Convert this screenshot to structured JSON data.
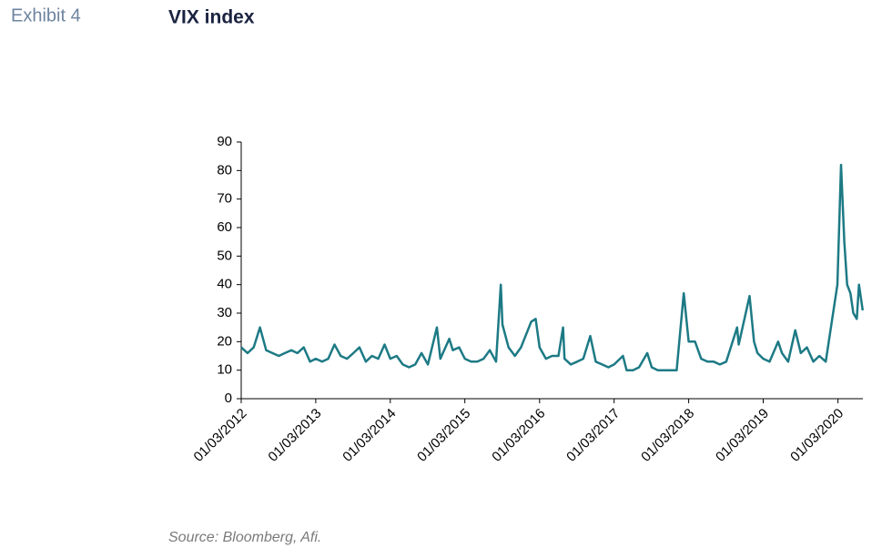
{
  "chart_data": {
    "type": "line",
    "label": "Exhibit 4",
    "title": "VIX index",
    "source": "Source: Bloomberg, Afi.",
    "ylim": [
      0,
      90
    ],
    "yticks": [
      0,
      10,
      20,
      30,
      40,
      50,
      60,
      70,
      80,
      90
    ],
    "xlim": [
      "01/03/2012",
      "01/07/2020"
    ],
    "xticks": [
      "01/03/2012",
      "01/03/2013",
      "01/03/2014",
      "01/03/2015",
      "01/03/2016",
      "01/03/2017",
      "01/03/2018",
      "01/03/2019",
      "01/03/2020"
    ],
    "grid": false,
    "series": [
      {
        "name": "VIX",
        "color": "#1d7a85",
        "x": [
          "01/03/2012",
          "01/04/2012",
          "01/05/2012",
          "01/06/2012",
          "01/07/2012",
          "01/08/2012",
          "01/09/2012",
          "01/10/2012",
          "01/11/2012",
          "01/12/2012",
          "01/01/2013",
          "01/02/2013",
          "01/03/2013",
          "01/04/2013",
          "01/05/2013",
          "01/06/2013",
          "01/07/2013",
          "01/08/2013",
          "01/09/2013",
          "01/10/2013",
          "01/11/2013",
          "01/12/2013",
          "01/01/2014",
          "01/02/2014",
          "01/03/2014",
          "01/04/2014",
          "01/05/2014",
          "01/06/2014",
          "01/07/2014",
          "01/08/2014",
          "01/09/2014",
          "15/10/2014",
          "01/11/2014",
          "15/12/2014",
          "01/01/2015",
          "01/02/2015",
          "01/03/2015",
          "01/04/2015",
          "01/05/2015",
          "01/06/2015",
          "01/07/2015",
          "01/08/2015",
          "24/08/2015",
          "01/09/2015",
          "01/10/2015",
          "01/11/2015",
          "01/12/2015",
          "20/01/2016",
          "11/02/2016",
          "01/03/2016",
          "01/04/2016",
          "01/05/2016",
          "01/06/2016",
          "24/06/2016",
          "01/07/2016",
          "01/08/2016",
          "01/09/2016",
          "01/10/2016",
          "04/11/2016",
          "01/12/2016",
          "01/01/2017",
          "01/02/2017",
          "01/03/2017",
          "13/04/2017",
          "01/05/2017",
          "01/06/2017",
          "01/07/2017",
          "10/08/2017",
          "01/09/2017",
          "01/10/2017",
          "01/11/2017",
          "01/12/2017",
          "01/01/2018",
          "05/02/2018",
          "01/03/2018",
          "01/04/2018",
          "01/05/2018",
          "01/06/2018",
          "01/07/2018",
          "01/08/2018",
          "01/09/2018",
          "24/10/2018",
          "01/11/2018",
          "24/12/2018",
          "15/01/2019",
          "01/02/2019",
          "01/03/2019",
          "01/04/2019",
          "13/05/2019",
          "01/06/2019",
          "01/07/2019",
          "05/08/2019",
          "01/09/2019",
          "01/10/2019",
          "01/11/2019",
          "01/12/2019",
          "01/01/2020",
          "27/02/2020",
          "16/03/2020",
          "01/04/2020",
          "15/04/2020",
          "01/05/2020",
          "15/05/2020",
          "01/06/2020",
          "12/06/2020",
          "30/06/2020"
        ],
        "values": [
          18,
          16,
          18,
          25,
          17,
          16,
          15,
          16,
          17,
          16,
          18,
          13,
          14,
          13,
          14,
          19,
          15,
          14,
          16,
          18,
          13,
          15,
          14,
          19,
          14,
          15,
          12,
          11,
          12,
          16,
          12,
          25,
          14,
          21,
          17,
          18,
          14,
          13,
          13,
          14,
          17,
          13,
          40,
          26,
          18,
          15,
          18,
          27,
          28,
          18,
          14,
          15,
          15,
          25,
          14,
          12,
          13,
          14,
          22,
          13,
          12,
          11,
          12,
          15,
          10,
          10,
          11,
          16,
          11,
          10,
          10,
          10,
          10,
          37,
          20,
          20,
          14,
          13,
          13,
          12,
          13,
          25,
          19,
          36,
          20,
          16,
          14,
          13,
          20,
          16,
          13,
          24,
          16,
          18,
          13,
          15,
          13,
          40,
          82,
          55,
          40,
          37,
          30,
          28,
          40,
          31
        ]
      }
    ]
  }
}
